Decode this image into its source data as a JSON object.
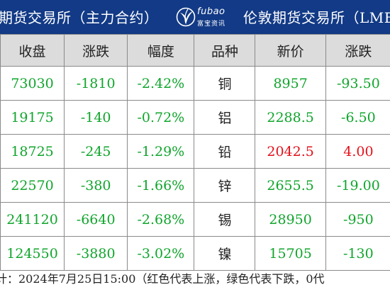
{
  "header": {
    "left_title": "期货交易所（主力合约）",
    "logo_en": "fubao",
    "logo_cn": "富宝资讯",
    "right_title": "伦敦期货交易所（LME"
  },
  "table": {
    "columns": [
      "收盘",
      "涨跌",
      "幅度",
      "品种",
      "新价",
      "涨跌"
    ],
    "rows": [
      {
        "close": "73030",
        "change": "-1810",
        "pct": "-2.42%",
        "metal": "铜",
        "price": "8957",
        "lme_change": "-93.50",
        "price_color": "green",
        "lme_change_color": "green"
      },
      {
        "close": "19175",
        "change": "-140",
        "pct": "-0.72%",
        "metal": "铝",
        "price": "2288.5",
        "lme_change": "-6.50",
        "price_color": "green",
        "lme_change_color": "green"
      },
      {
        "close": "18725",
        "change": "-245",
        "pct": "-1.29%",
        "metal": "铅",
        "price": "2042.5",
        "lme_change": "4.00",
        "price_color": "red",
        "lme_change_color": "red"
      },
      {
        "close": "22570",
        "change": "-380",
        "pct": "-1.66%",
        "metal": "锌",
        "price": "2655.5",
        "lme_change": "-19.00",
        "price_color": "green",
        "lme_change_color": "green"
      },
      {
        "close": "241120",
        "change": "-6640",
        "pct": "-2.68%",
        "metal": "锡",
        "price": "28950",
        "lme_change": "-950",
        "price_color": "green",
        "lme_change_color": "green"
      },
      {
        "close": "124550",
        "change": "-3880",
        "pct": "-3.02%",
        "metal": "镍",
        "price": "15705",
        "lme_change": "-130",
        "price_color": "green",
        "lme_change_color": "green"
      }
    ]
  },
  "footer": {
    "note": "计：2024年7月25日15:00（红色代表上涨，绿色代表下跌，0代"
  },
  "colors": {
    "header_bg": "#123a86",
    "up": "#e3101a",
    "down": "#10a52c",
    "header_row_bg": "#dcdcdc"
  }
}
